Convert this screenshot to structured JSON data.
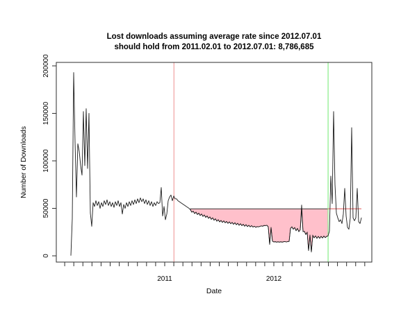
{
  "title": {
    "line1": "Lost downloads assuming average rate since 2012.07.01",
    "line2": "should hold from 2011.02.01 to 2012.07.01: 8,786,685"
  },
  "chart_data": {
    "type": "line",
    "title": "Lost downloads assuming average rate since 2012.07.01 should hold from 2011.02.01 to 2012.07.01: 8,786,685",
    "xlabel": "Date",
    "ylabel": "Number of Downloads",
    "line_color": "#1a1a1a",
    "background": "#ffffff",
    "xlim": [
      2010.03,
      2012.92
    ],
    "x_axis": {
      "tick_interval": "month",
      "first_tick": "2010-02",
      "last_tick": "2012-11",
      "year_labels": [
        {
          "label": "2011",
          "x": 2011.0
        },
        {
          "label": "2012",
          "x": 2012.0
        }
      ]
    },
    "y_axis": {
      "lim": [
        0,
        200000
      ],
      "ticks": [
        0,
        50000,
        100000,
        150000,
        200000
      ],
      "labels": [
        "0",
        "50000",
        "100000",
        "150000",
        "200000"
      ]
    },
    "reference_lines": {
      "red_vline": {
        "x": 2011.0849,
        "date": "2011.02.01",
        "color": "#f2a8a8"
      },
      "green_vline": {
        "x": 2012.4973,
        "date": "2012.07.01",
        "color": "#90ee90"
      },
      "red_hline": {
        "y": 49500,
        "meaning": "average daily rate since 2012.07.01",
        "color": "#e05555"
      }
    },
    "shaded_region": {
      "color": "#ffc0cb",
      "border_color": "#1a1a1a",
      "from_date": "2011.02.01",
      "to_date": "2012.07.01",
      "top_value": 49500,
      "meaning": "lost downloads (gap between average rate and actual)",
      "total_lost": "8,786,685"
    },
    "series": {
      "name": "daily downloads",
      "x_start": 2010.14,
      "x_step": 0.012739,
      "values": [
        500,
        39000,
        193000,
        120000,
        62000,
        118000,
        110000,
        95000,
        85000,
        152000,
        95000,
        155000,
        92000,
        150000,
        45000,
        31000,
        56000,
        52000,
        58000,
        53000,
        57000,
        50000,
        56000,
        52000,
        58000,
        54000,
        59000,
        53000,
        57000,
        52000,
        56000,
        51000,
        57000,
        53000,
        58000,
        52000,
        56000,
        44000,
        54000,
        50000,
        56000,
        52000,
        57000,
        53000,
        58000,
        54000,
        59000,
        55000,
        60000,
        56000,
        61000,
        57000,
        60000,
        55000,
        59000,
        54000,
        58000,
        53000,
        57000,
        52000,
        56000,
        53000,
        57000,
        55000,
        56000,
        72000,
        42000,
        52000,
        38000,
        44000,
        58000,
        62000,
        64000,
        58000,
        63000,
        60000,
        60000,
        58000,
        57000,
        56000,
        55000,
        54000,
        53000,
        52000,
        51000,
        50000,
        48500,
        46000,
        47000,
        44500,
        46000,
        43500,
        45000,
        42500,
        44000,
        41500,
        43000,
        40500,
        42000,
        39500,
        41000,
        38500,
        40000,
        37500,
        39000,
        36500,
        38000,
        35800,
        37200,
        35200,
        36800,
        34800,
        36200,
        34200,
        35800,
        33800,
        35200,
        33200,
        34800,
        32800,
        34200,
        32200,
        33800,
        31800,
        33200,
        31200,
        32800,
        30800,
        32200,
        30500,
        31800,
        30300,
        31200,
        30100,
        30800,
        30500,
        31000,
        31500,
        31200,
        32000,
        31800,
        32200,
        30500,
        12000,
        30000,
        15500,
        14600,
        14900,
        14400,
        14800,
        14400,
        14800,
        14400,
        14800,
        15000,
        14600,
        15000,
        15200,
        29000,
        30500,
        28000,
        29800,
        26500,
        28800,
        25500,
        27500,
        53500,
        25500,
        25800,
        22500,
        24800,
        5500,
        22000,
        4000,
        21500,
        19000,
        21000,
        18500,
        20500,
        18500,
        20500,
        18800,
        20800,
        19200,
        20500,
        21000,
        26000,
        84000,
        55000,
        152000,
        75000,
        45000,
        40000,
        36000,
        38000,
        34000,
        44000,
        71000,
        42000,
        30000,
        28000,
        40000,
        135000,
        40000,
        37000,
        40000,
        71000,
        36000,
        34000,
        40000
      ]
    }
  }
}
